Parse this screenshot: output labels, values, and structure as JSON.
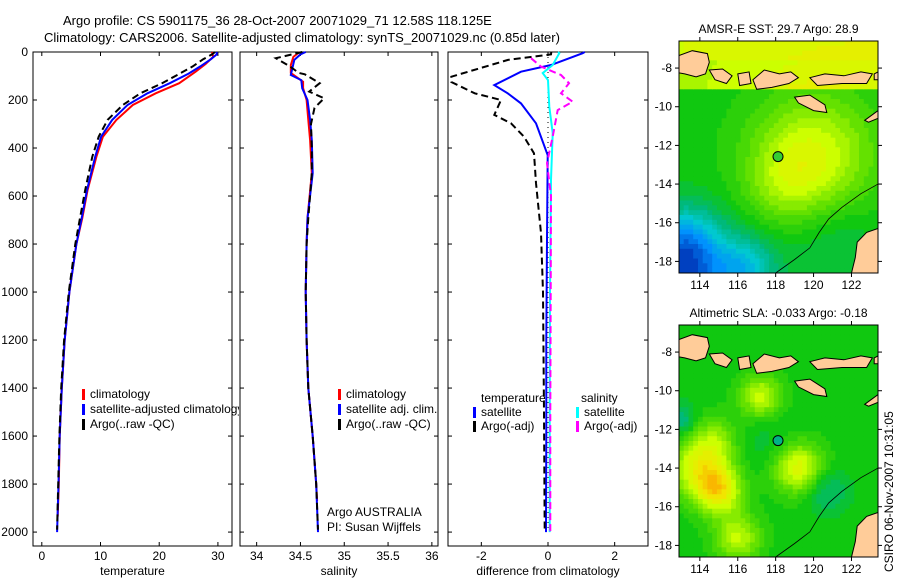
{
  "title": {
    "line1": "Argo profile: CS 5901175_36 28-Oct-2007 20071029_71 12.58S 118.125E",
    "line2": "Climatology: CARS2006. Satellite-adjusted climatology: synTS_20071029.nc (0.85d later)"
  },
  "credits": {
    "agency": "Argo AUSTRALIA",
    "pi": "PI: Susan Wijffels"
  },
  "footer_stamp": "CSIRO 06-Nov-2007 10:31:05",
  "chart_data": [
    {
      "type": "line",
      "id": "temperature",
      "xlabel": "temperature",
      "ylabel": "",
      "xlim": [
        -1.5,
        32.4
      ],
      "ylim": [
        2058,
        0
      ],
      "xticks": [
        0,
        10,
        20,
        30
      ],
      "yticks": [
        0,
        200,
        400,
        600,
        800,
        1000,
        1200,
        1400,
        1600,
        1800,
        2000
      ],
      "legend": [
        "climatology",
        "satellite-adjusted climatology",
        "Argo(..raw -QC)"
      ],
      "series": [
        {
          "name": "climatology",
          "color": "#ff0000",
          "dash": false,
          "depth": [
            0,
            20,
            50,
            82,
            130,
            172,
            221,
            283,
            353,
            436,
            575,
            692,
            800,
            1000,
            1200,
            1400,
            1600,
            1800,
            1935
          ],
          "values": [
            29.0,
            29.2,
            27.9,
            26.2,
            23.4,
            19.4,
            15.5,
            12.7,
            10.4,
            9.3,
            7.8,
            6.9,
            5.9,
            4.7,
            3.9,
            3.4,
            3.05,
            2.9,
            2.7
          ]
        },
        {
          "name": "satellite-adjusted climatology",
          "color": "#0000ff",
          "dash": false,
          "depth": [
            0,
            10,
            30,
            60,
            90,
            130,
            172,
            221,
            283,
            353,
            436,
            575,
            692,
            800,
            1000,
            1200,
            1400,
            1600,
            1800,
            2000
          ],
          "values": [
            29.8,
            29.8,
            28.8,
            27.0,
            25.0,
            21.8,
            18.0,
            14.6,
            12.0,
            10.1,
            9.1,
            7.7,
            6.8,
            5.9,
            4.7,
            3.9,
            3.4,
            3.05,
            2.85,
            2.6
          ]
        },
        {
          "name": "Argo(..raw -QC)",
          "color": "#000000",
          "dash": true,
          "depth": [
            0,
            10,
            30,
            60,
            90,
            130,
            172,
            221,
            283,
            353,
            436,
            575,
            692,
            800,
            1000,
            1200,
            1400,
            1600,
            1800,
            1990
          ],
          "values": [
            29.5,
            29.0,
            27.5,
            25.7,
            23.5,
            20.5,
            16.8,
            13.8,
            11.2,
            9.7,
            8.6,
            7.4,
            6.5,
            5.7,
            4.6,
            3.8,
            3.3,
            3.0,
            2.8,
            2.6
          ]
        }
      ]
    },
    {
      "type": "line",
      "id": "salinity",
      "xlabel": "salinity",
      "ylabel": "",
      "xlim": [
        33.81,
        36.07
      ],
      "ylim": [
        2058,
        0
      ],
      "xticks": [
        34,
        34.5,
        35,
        35.5,
        36
      ],
      "yticks": [
        0,
        200,
        400,
        600,
        800,
        1000,
        1200,
        1400,
        1600,
        1800,
        2000
      ],
      "legend": [
        "climatology",
        "satellite adj. clim.",
        "Argo(..raw -QC)"
      ],
      "series": [
        {
          "name": "climatology",
          "color": "#ff0000",
          "dash": false,
          "depth": [
            0,
            20,
            54,
            87,
            124,
            151,
            200,
            283,
            367,
            505,
            692,
            800,
            1000,
            1200,
            1400,
            1600,
            1800,
            1870
          ],
          "values": [
            34.49,
            34.42,
            34.39,
            34.39,
            34.53,
            34.53,
            34.57,
            34.59,
            34.61,
            34.63,
            34.58,
            34.57,
            34.56,
            34.57,
            34.59,
            34.64,
            34.68,
            34.69
          ]
        },
        {
          "name": "satellite adj. clim.",
          "color": "#0000ff",
          "dash": false,
          "depth": [
            0,
            10,
            33,
            96,
            117,
            151,
            200,
            283,
            367,
            505,
            692,
            800,
            1000,
            1200,
            1400,
            1600,
            1800,
            2000
          ],
          "values": [
            34.56,
            34.5,
            34.43,
            34.39,
            34.51,
            34.52,
            34.58,
            34.61,
            34.63,
            34.64,
            34.58,
            34.57,
            34.56,
            34.57,
            34.59,
            34.64,
            34.68,
            34.7
          ]
        },
        {
          "name": "Argo(..raw -QC)",
          "color": "#000000",
          "dash": true,
          "depth": [
            0,
            26,
            60,
            87,
            93,
            130,
            165,
            193,
            233,
            300,
            400,
            505,
            692,
            800,
            1000,
            1200,
            1400,
            1600,
            1800,
            1990
          ],
          "values": [
            34.52,
            34.22,
            34.38,
            34.48,
            34.55,
            34.72,
            34.6,
            34.77,
            34.66,
            34.62,
            34.63,
            34.63,
            34.59,
            34.57,
            34.56,
            34.57,
            34.59,
            34.64,
            34.68,
            34.7
          ]
        }
      ]
    },
    {
      "type": "line",
      "id": "difference",
      "xlabel": "difference from climatology",
      "ylabel": "",
      "xlim": [
        -3,
        3
      ],
      "ylim": [
        2058,
        0
      ],
      "xticks": [
        -2,
        0,
        2
      ],
      "yticks": [
        0,
        200,
        400,
        600,
        800,
        1000,
        1200,
        1400,
        1600,
        1800,
        2000
      ],
      "legend_headers": [
        "temperature",
        "salinity"
      ],
      "legend": [
        "satellite",
        "Argo(-adj)",
        "satellite",
        "Argo(-adj)"
      ],
      "series": [
        {
          "name": "temperature satellite",
          "color": "#0000ff",
          "dash": false,
          "depth": [
            0,
            5,
            54,
            82,
            138,
            172,
            214,
            297,
            430,
            783,
            1200,
            1600,
            2000
          ],
          "values": [
            1.1,
            1.04,
            0.09,
            -0.81,
            -1.61,
            -1.21,
            -0.81,
            -0.36,
            -0.01,
            -0.03,
            -0.05,
            -0.05,
            -0.06
          ]
        },
        {
          "name": "temperature Argo(-adj)",
          "color": "#000000",
          "dash": true,
          "depth": [
            0,
            10,
            33,
            103,
            125,
            172,
            200,
            262,
            297,
            353,
            422,
            546,
            754,
            1000,
            1500,
            2000
          ],
          "values": [
            0.1,
            0.09,
            -1.2,
            -2.9,
            -2.9,
            -2.2,
            -1.41,
            -1.61,
            -1.11,
            -0.72,
            -0.42,
            -0.36,
            -0.21,
            -0.15,
            -0.12,
            -0.1
          ]
        },
        {
          "name": "salinity satellite",
          "color": "#00ffff",
          "dash": false,
          "depth": [
            0,
            5,
            54,
            88,
            117,
            228,
            338,
            533,
            1000,
            1500,
            2000
          ],
          "values": [
            0.3,
            0.34,
            0.14,
            -0.16,
            0,
            0.04,
            0.14,
            0.09,
            0.06,
            0.05,
            0.05
          ]
        },
        {
          "name": "salinity Argo(-adj)",
          "color": "#ff00ff",
          "dash": true,
          "depth": [
            26,
            61,
            96,
            130,
            172,
            207,
            242,
            353,
            463,
            600,
            1000,
            1500,
            2000
          ],
          "values": [
            -0.51,
            -0.21,
            0.39,
            0.63,
            0.39,
            0.74,
            0.29,
            0.14,
            -0.03,
            0.09,
            0.08,
            0.07,
            0.07
          ]
        }
      ]
    },
    {
      "type": "heatmap",
      "id": "sst_map",
      "title": "AMSR-E SST: 29.7 Argo: 28.9",
      "xlim": [
        112.9,
        123.4
      ],
      "ylim": [
        -18.6,
        -6.6
      ],
      "xticks": [
        114,
        116,
        118,
        120,
        122
      ],
      "yticks": [
        -8,
        -10,
        -12,
        -14,
        -16,
        -18
      ],
      "float_position": {
        "lon": 118.125,
        "lat": -12.58
      },
      "marker_color": "#33cc33"
    },
    {
      "type": "heatmap",
      "id": "sla_map",
      "title": "Altimetric SLA: -0.033 Argo: -0.18",
      "xlim": [
        112.9,
        123.4
      ],
      "ylim": [
        -18.6,
        -6.6
      ],
      "xticks": [
        114,
        116,
        118,
        120,
        122
      ],
      "yticks": [
        -8,
        -10,
        -12,
        -14,
        -16,
        -18
      ],
      "float_position": {
        "lon": 118.125,
        "lat": -12.58
      },
      "marker_color": "#00b386"
    }
  ]
}
